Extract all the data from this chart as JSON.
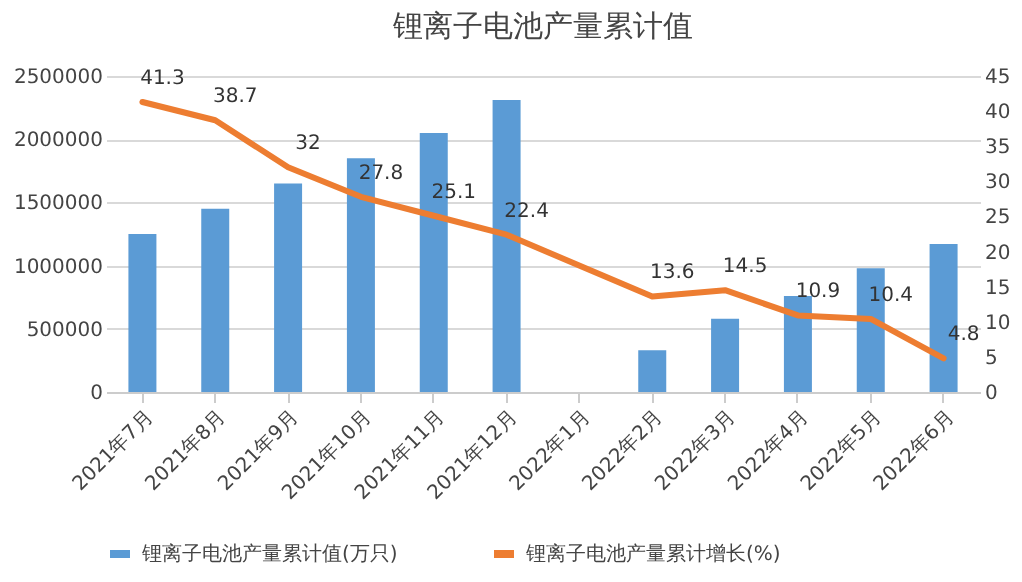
{
  "chart_data": {
    "type": "bar",
    "title": "锂离子电池产量累计值",
    "categories": [
      "2021年7月",
      "2021年8月",
      "2021年9月",
      "2021年10月",
      "2021年11月",
      "2021年12月",
      "2022年1月",
      "2022年2月",
      "2022年3月",
      "2022年4月",
      "2022年5月",
      "2022年6月"
    ],
    "series": [
      {
        "name": "锂离子电池产量累计值(万只)",
        "color": "#5b9bd5",
        "values": [
          1250000,
          1450000,
          1650000,
          1850000,
          2050000,
          2310000,
          null,
          330000,
          580000,
          760000,
          980000,
          1170000
        ]
      },
      {
        "name": "锂离子电池产量累计增长(%)",
        "type": "line",
        "axis": "y2",
        "color": "#ed7d31",
        "values": [
          41.3,
          38.7,
          32,
          27.8,
          25.1,
          22.4,
          null,
          13.6,
          14.5,
          10.9,
          10.4,
          4.8
        ],
        "value_labels": [
          "41.3",
          "38.7",
          "32",
          "27.8",
          "25.1",
          "22.4",
          null,
          "13.6",
          "14.5",
          "10.9",
          "10.4",
          "4.8"
        ]
      }
    ],
    "ylim": [
      0,
      2500000
    ],
    "yticks": [
      0,
      500000,
      1000000,
      1500000,
      2000000,
      2500000
    ],
    "y2lim": [
      0,
      45
    ],
    "y2ticks": [
      0,
      5,
      10,
      15,
      20,
      25,
      30,
      35,
      40,
      45
    ],
    "grid": "y",
    "legend": "bottom"
  }
}
